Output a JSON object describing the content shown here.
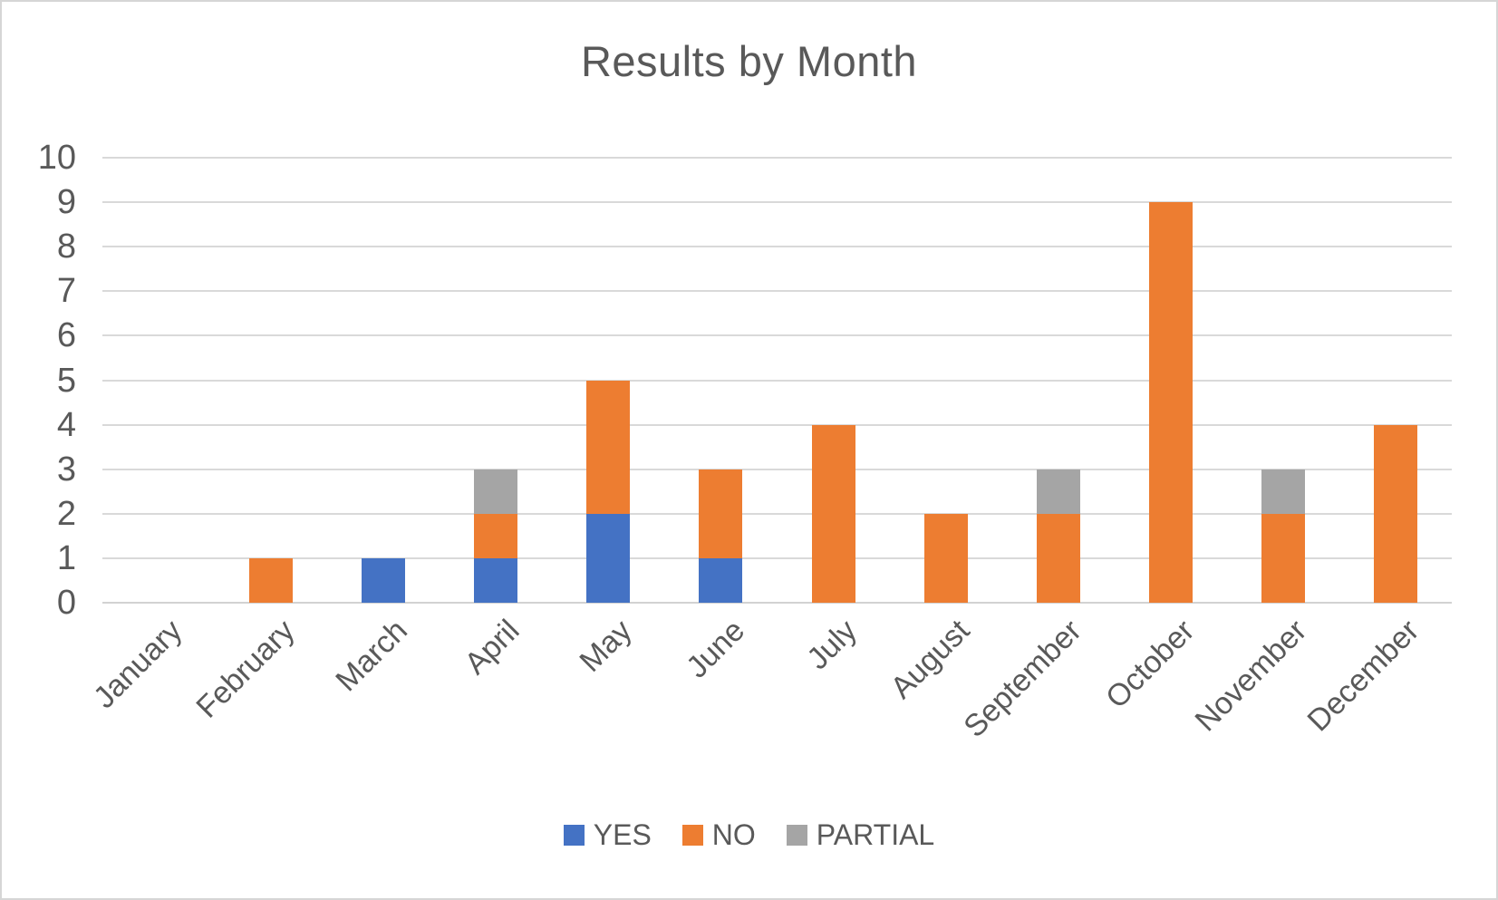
{
  "title": "Results by Month",
  "chart_data": {
    "type": "bar",
    "stacked": true,
    "title": "Results by Month",
    "xlabel": "",
    "ylabel": "",
    "categories": [
      "January",
      "February",
      "March",
      "April",
      "May",
      "June",
      "July",
      "August",
      "September",
      "October",
      "November",
      "December"
    ],
    "series": [
      {
        "name": "YES",
        "color": "#4472C4",
        "values": [
          0,
          0,
          1,
          1,
          2,
          1,
          0,
          0,
          0,
          0,
          0,
          0
        ]
      },
      {
        "name": "NO",
        "color": "#ED7D31",
        "values": [
          0,
          1,
          0,
          1,
          3,
          2,
          4,
          2,
          2,
          9,
          2,
          4
        ]
      },
      {
        "name": "PARTIAL",
        "color": "#A5A5A5",
        "values": [
          0,
          0,
          0,
          1,
          0,
          0,
          0,
          0,
          1,
          0,
          1,
          0
        ]
      }
    ],
    "ylim": [
      0,
      10
    ],
    "ytick_step": 1,
    "ytick_labels": [
      "0",
      "1",
      "2",
      "3",
      "4",
      "5",
      "6",
      "7",
      "8",
      "9",
      "10"
    ],
    "grid": true,
    "legend_position": "bottom",
    "legend_entries": [
      "YES",
      "NO",
      "PARTIAL"
    ]
  },
  "colors": {
    "text": "#595959",
    "gridline": "#D9D9D9",
    "axis_line": "#D2D2D2",
    "background": "#FFFFFF",
    "border": "#D6D6D6"
  }
}
